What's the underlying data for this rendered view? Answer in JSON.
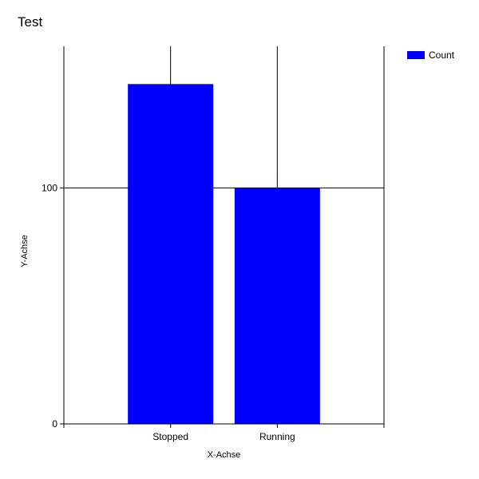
{
  "chart_data": {
    "type": "bar",
    "title": "Test",
    "xlabel": "X-Achse",
    "ylabel": "Y-Achse",
    "categories": [
      "Stopped",
      "Running"
    ],
    "series": [
      {
        "name": "Count",
        "values": [
          144,
          100
        ],
        "color": "#0000ff"
      }
    ],
    "ylim": [
      0,
      160
    ],
    "yticks": [
      0,
      100
    ],
    "ytick_labels": [
      "0",
      "100"
    ],
    "grid": true,
    "legend_position": "top-right"
  }
}
